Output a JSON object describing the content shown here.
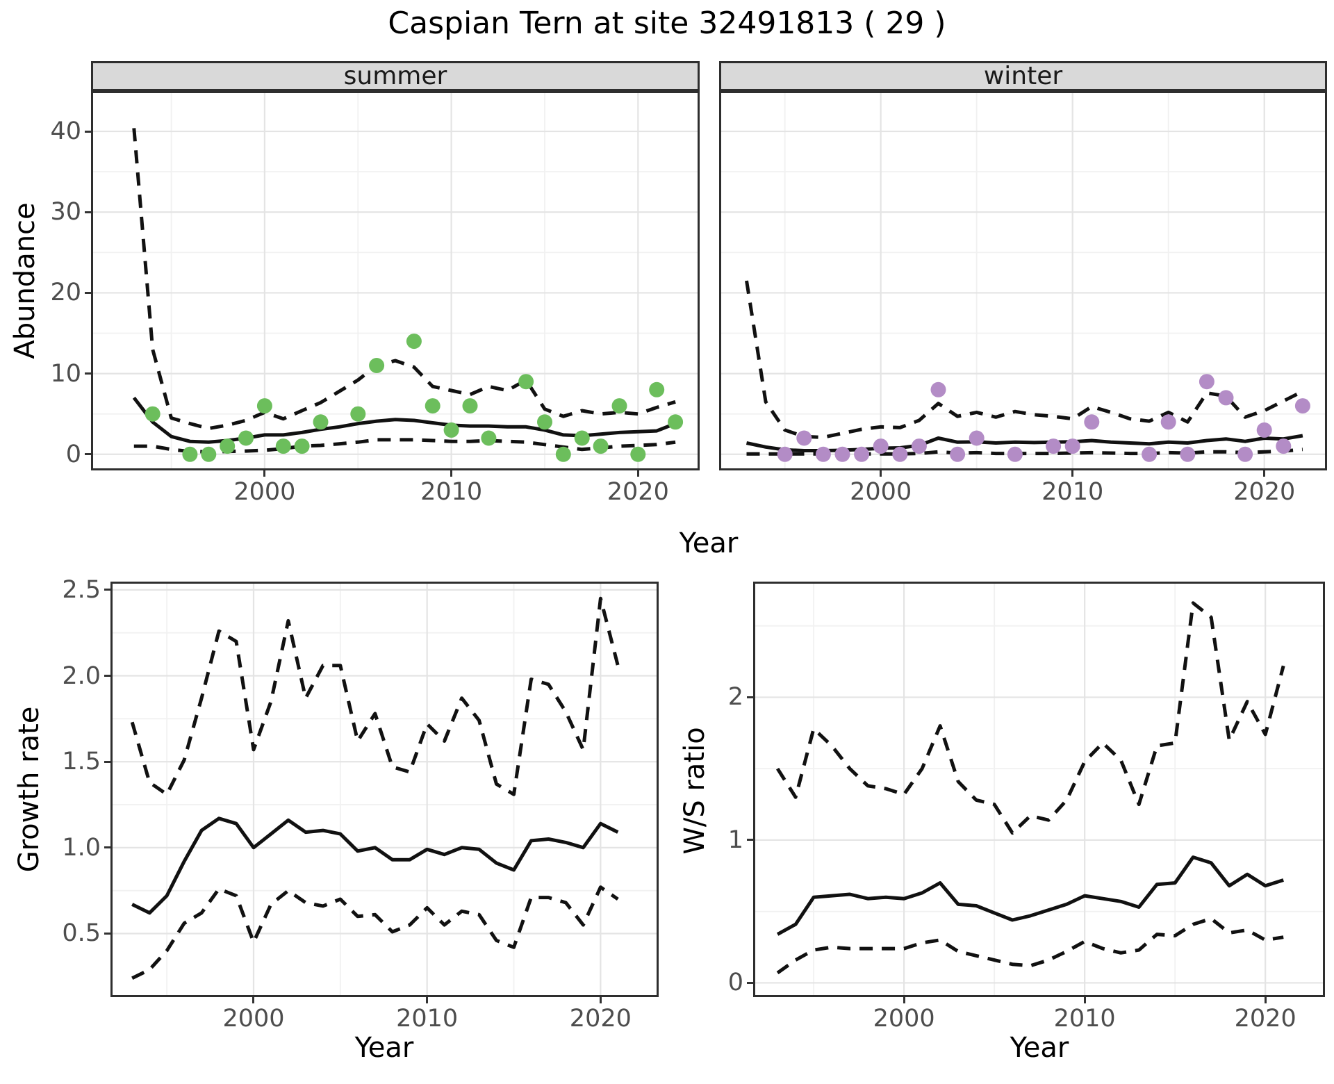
{
  "title": "Caspian Tern at site 32491813 ( 29 )",
  "top_row": {
    "ylabel": "Abundance",
    "xlabel": "Year"
  },
  "colors": {
    "summer_points": "#6CBE5C",
    "winter_points": "#B38CC6",
    "line": "#111111",
    "strip_bg": "#D9D9D9",
    "grid_major": "#E4E4E4",
    "grid_minor": "#F1F1F1",
    "panel_border": "#2E2E2E",
    "tick_text": "#4D4D4D"
  },
  "chart_data": [
    {
      "type": "line+scatter+band",
      "facet_label": "summer",
      "xlabel": "Year",
      "ylabel": "Abundance",
      "x_domain": [
        1990.7,
        2023.3
      ],
      "y_domain": [
        -2.0,
        45.0
      ],
      "x_ticks": [
        {
          "v": 2000,
          "label": "2000"
        },
        {
          "v": 2010,
          "label": "2010"
        },
        {
          "v": 2020,
          "label": "2020"
        }
      ],
      "y_ticks": [
        {
          "v": 0,
          "label": "0"
        },
        {
          "v": 10,
          "label": "10"
        },
        {
          "v": 20,
          "label": "20"
        },
        {
          "v": 30,
          "label": "30"
        },
        {
          "v": 40,
          "label": "40"
        }
      ],
      "x_minor": [
        1995,
        2005,
        2015
      ],
      "y_minor": [
        5,
        15,
        25,
        35
      ],
      "points": {
        "years": [
          1994,
          1996,
          1997,
          1998,
          1999,
          2000,
          2001,
          2002,
          2003,
          2005,
          2006,
          2008,
          2009,
          2010,
          2011,
          2012,
          2014,
          2015,
          2016,
          2017,
          2018,
          2019,
          2020,
          2021,
          2022
        ],
        "values": [
          5,
          0,
          0,
          1,
          2,
          6,
          1,
          1,
          4,
          5,
          11,
          14,
          6,
          3,
          6,
          2,
          9,
          4,
          0,
          2,
          1,
          6,
          0,
          8,
          4
        ]
      },
      "mean": {
        "years": [
          1993,
          1994,
          1995,
          1996,
          1997,
          1998,
          1999,
          2000,
          2001,
          2002,
          2003,
          2004,
          2005,
          2006,
          2007,
          2008,
          2009,
          2010,
          2011,
          2012,
          2013,
          2014,
          2015,
          2016,
          2017,
          2018,
          2019,
          2020,
          2021,
          2022
        ],
        "values": [
          7.0,
          4.0,
          2.2,
          1.6,
          1.5,
          1.7,
          2.0,
          2.4,
          2.4,
          2.7,
          3.1,
          3.4,
          3.8,
          4.1,
          4.3,
          4.2,
          3.9,
          3.6,
          3.5,
          3.5,
          3.4,
          3.4,
          3.0,
          2.4,
          2.3,
          2.5,
          2.7,
          2.8,
          2.9,
          3.8
        ]
      },
      "band_upper": {
        "years": [
          1993,
          1994,
          1995,
          1996,
          1997,
          1998,
          1999,
          2000,
          2001,
          2002,
          2003,
          2004,
          2005,
          2006,
          2007,
          2008,
          2009,
          2010,
          2011,
          2012,
          2013,
          2014,
          2015,
          2016,
          2017,
          2018,
          2019,
          2020,
          2021,
          2022
        ],
        "values": [
          40.4,
          13.0,
          4.5,
          3.8,
          3.2,
          3.6,
          4.2,
          5.2,
          4.4,
          5.4,
          6.4,
          7.8,
          9.2,
          11.0,
          11.6,
          10.8,
          8.4,
          7.9,
          7.4,
          8.4,
          7.9,
          9.2,
          5.6,
          4.7,
          5.4,
          5.0,
          5.2,
          5.0,
          5.8,
          6.5
        ]
      },
      "band_lower": {
        "years": [
          1993,
          1994,
          1995,
          1996,
          1997,
          1998,
          1999,
          2000,
          2001,
          2002,
          2003,
          2004,
          2005,
          2006,
          2007,
          2008,
          2009,
          2010,
          2011,
          2012,
          2013,
          2014,
          2015,
          2016,
          2017,
          2018,
          2019,
          2020,
          2021,
          2022
        ],
        "values": [
          1.0,
          1.0,
          0.6,
          0.35,
          0.3,
          0.35,
          0.4,
          0.5,
          0.7,
          1.0,
          1.1,
          1.3,
          1.5,
          1.8,
          1.8,
          1.8,
          1.7,
          1.6,
          1.6,
          1.7,
          1.6,
          1.5,
          1.2,
          0.9,
          0.6,
          0.8,
          1.0,
          1.1,
          1.2,
          1.5
        ]
      }
    },
    {
      "type": "line+scatter+band",
      "facet_label": "winter",
      "xlabel": "Year",
      "ylabel": "Abundance",
      "x_domain": [
        1991.57,
        2023.27
      ],
      "y_domain": [
        -2.0,
        45.0
      ],
      "x_ticks": [
        {
          "v": 2000,
          "label": "2000"
        },
        {
          "v": 2010,
          "label": "2010"
        },
        {
          "v": 2020,
          "label": "2020"
        }
      ],
      "y_ticks": [],
      "x_minor": [
        1995,
        2005,
        2015
      ],
      "y_minor": [
        5,
        15,
        25,
        35
      ],
      "points": {
        "years": [
          1995,
          1996,
          1997,
          1998,
          1999,
          2000,
          2001,
          2002,
          2003,
          2004,
          2005,
          2007,
          2009,
          2010,
          2011,
          2014,
          2015,
          2016,
          2017,
          2018,
          2019,
          2020,
          2021,
          2022
        ],
        "values": [
          0,
          2,
          0,
          0,
          0,
          1,
          0,
          1,
          8,
          0,
          2,
          0,
          1,
          1,
          4,
          0,
          4,
          0,
          9,
          7,
          0,
          3,
          1,
          6
        ]
      },
      "mean": {
        "years": [
          1993,
          1994,
          1995,
          1996,
          1997,
          1998,
          1999,
          2000,
          2001,
          2002,
          2003,
          2004,
          2005,
          2006,
          2007,
          2008,
          2009,
          2010,
          2011,
          2012,
          2013,
          2014,
          2015,
          2016,
          2017,
          2018,
          2019,
          2020,
          2021,
          2022
        ],
        "values": [
          1.4,
          0.9,
          0.55,
          0.45,
          0.45,
          0.5,
          0.6,
          0.75,
          0.8,
          1.1,
          2.0,
          1.5,
          1.55,
          1.4,
          1.5,
          1.45,
          1.5,
          1.55,
          1.7,
          1.5,
          1.4,
          1.3,
          1.5,
          1.4,
          1.7,
          1.9,
          1.6,
          2.0,
          1.9,
          2.3
        ]
      },
      "band_upper": {
        "years": [
          1993,
          1994,
          1995,
          1996,
          1997,
          1998,
          1999,
          2000,
          2001,
          2002,
          2003,
          2004,
          2005,
          2006,
          2007,
          2008,
          2009,
          2010,
          2011,
          2012,
          2013,
          2014,
          2015,
          2016,
          2017,
          2018,
          2019,
          2020,
          2021,
          2022
        ],
        "values": [
          21.5,
          6.5,
          3.0,
          2.2,
          2.1,
          2.6,
          3.1,
          3.4,
          3.3,
          4.2,
          6.3,
          4.7,
          5.2,
          4.6,
          5.3,
          4.9,
          4.7,
          4.4,
          5.9,
          5.2,
          4.4,
          4.1,
          5.2,
          4.0,
          7.6,
          7.2,
          4.6,
          5.4,
          6.6,
          7.8
        ]
      },
      "band_lower": {
        "years": [
          1993,
          1994,
          1995,
          1996,
          1997,
          1998,
          1999,
          2000,
          2001,
          2002,
          2003,
          2004,
          2005,
          2006,
          2007,
          2008,
          2009,
          2010,
          2011,
          2012,
          2013,
          2014,
          2015,
          2016,
          2017,
          2018,
          2019,
          2020,
          2021,
          2022
        ],
        "values": [
          0.05,
          0.05,
          0.05,
          0.05,
          0.05,
          0.05,
          0.05,
          0.05,
          0.05,
          0.1,
          0.3,
          0.15,
          0.2,
          0.1,
          0.1,
          0.1,
          0.1,
          0.15,
          0.2,
          0.15,
          0.1,
          0.1,
          0.2,
          0.15,
          0.3,
          0.3,
          0.2,
          0.3,
          0.4,
          0.6
        ]
      }
    },
    {
      "type": "line+band",
      "facet_label": "",
      "xlabel": "Year",
      "ylabel": "Growth rate",
      "x_domain": [
        1991.75,
        2023.35
      ],
      "y_domain": [
        0.13,
        2.548
      ],
      "x_ticks": [
        {
          "v": 2000,
          "label": "2000"
        },
        {
          "v": 2010,
          "label": "2010"
        },
        {
          "v": 2020,
          "label": "2020"
        }
      ],
      "y_ticks": [
        {
          "v": 0.5,
          "label": "0.5"
        },
        {
          "v": 1.0,
          "label": "1.0"
        },
        {
          "v": 1.5,
          "label": "1.5"
        },
        {
          "v": 2.0,
          "label": "2.0"
        },
        {
          "v": 2.5,
          "label": "2.5"
        }
      ],
      "x_minor": [
        1995,
        2005,
        2015
      ],
      "y_minor": [
        0.75,
        1.25,
        1.75,
        2.25
      ],
      "points": null,
      "mean": {
        "years": [
          1993,
          1994,
          1995,
          1996,
          1997,
          1998,
          1999,
          2000,
          2001,
          2002,
          2003,
          2004,
          2005,
          2006,
          2007,
          2008,
          2009,
          2010,
          2011,
          2012,
          2013,
          2014,
          2015,
          2016,
          2017,
          2018,
          2019,
          2020,
          2021
        ],
        "values": [
          0.67,
          0.62,
          0.72,
          0.92,
          1.1,
          1.17,
          1.14,
          1.0,
          1.08,
          1.16,
          1.09,
          1.1,
          1.08,
          0.98,
          1.0,
          0.93,
          0.93,
          0.99,
          0.96,
          1.0,
          0.99,
          0.91,
          0.87,
          1.04,
          1.05,
          1.03,
          1.0,
          1.14,
          1.09
        ]
      },
      "band_upper": {
        "years": [
          1993,
          1994,
          1995,
          1996,
          1997,
          1998,
          1999,
          2000,
          2001,
          2002,
          2003,
          2004,
          2005,
          2006,
          2007,
          2008,
          2009,
          2010,
          2011,
          2012,
          2013,
          2014,
          2015,
          2016,
          2017,
          2018,
          2019,
          2020,
          2021
        ],
        "values": [
          1.73,
          1.38,
          1.31,
          1.51,
          1.87,
          2.26,
          2.2,
          1.57,
          1.85,
          2.32,
          1.87,
          2.06,
          2.06,
          1.62,
          1.78,
          1.47,
          1.44,
          1.72,
          1.62,
          1.87,
          1.74,
          1.37,
          1.31,
          1.98,
          1.95,
          1.79,
          1.57,
          2.45,
          2.06
        ]
      },
      "band_lower": {
        "years": [
          1993,
          1994,
          1995,
          1996,
          1997,
          1998,
          1999,
          2000,
          2001,
          2002,
          2003,
          2004,
          2005,
          2006,
          2007,
          2008,
          2009,
          2010,
          2011,
          2012,
          2013,
          2014,
          2015,
          2016,
          2017,
          2018,
          2019,
          2020,
          2021
        ],
        "values": [
          0.24,
          0.29,
          0.4,
          0.56,
          0.62,
          0.76,
          0.72,
          0.45,
          0.67,
          0.75,
          0.68,
          0.66,
          0.7,
          0.6,
          0.61,
          0.51,
          0.55,
          0.65,
          0.55,
          0.63,
          0.61,
          0.46,
          0.42,
          0.71,
          0.71,
          0.68,
          0.55,
          0.77,
          0.7
        ]
      }
    },
    {
      "type": "line+band",
      "facet_label": "",
      "xlabel": "Year",
      "ylabel": "W/S ratio",
      "x_domain": [
        1991.65,
        2023.3
      ],
      "y_domain": [
        -0.1,
        2.81
      ],
      "x_ticks": [
        {
          "v": 2000,
          "label": "2000"
        },
        {
          "v": 2010,
          "label": "2010"
        },
        {
          "v": 2020,
          "label": "2020"
        }
      ],
      "y_ticks": [
        {
          "v": 0,
          "label": "0"
        },
        {
          "v": 1,
          "label": "1"
        },
        {
          "v": 2,
          "label": "2"
        }
      ],
      "x_minor": [
        1995,
        2005,
        2015
      ],
      "y_minor": [
        0.5,
        1.5,
        2.5
      ],
      "points": null,
      "mean": {
        "years": [
          1993,
          1994,
          1995,
          1996,
          1997,
          1998,
          1999,
          2000,
          2001,
          2002,
          2003,
          2004,
          2005,
          2006,
          2007,
          2008,
          2009,
          2010,
          2011,
          2012,
          2013,
          2014,
          2015,
          2016,
          2017,
          2018,
          2019,
          2020,
          2021
        ],
        "values": [
          0.34,
          0.41,
          0.6,
          0.61,
          0.62,
          0.59,
          0.6,
          0.59,
          0.63,
          0.7,
          0.55,
          0.54,
          0.49,
          0.44,
          0.47,
          0.51,
          0.55,
          0.61,
          0.59,
          0.57,
          0.53,
          0.69,
          0.7,
          0.88,
          0.84,
          0.68,
          0.76,
          0.68,
          0.72
        ]
      },
      "band_upper": {
        "years": [
          1993,
          1994,
          1995,
          1996,
          1997,
          1998,
          1999,
          2000,
          2001,
          2002,
          2003,
          2004,
          2005,
          2006,
          2007,
          2008,
          2009,
          2010,
          2011,
          2012,
          2013,
          2014,
          2015,
          2016,
          2017,
          2018,
          2019,
          2020,
          2021
        ],
        "values": [
          1.5,
          1.3,
          1.78,
          1.66,
          1.5,
          1.38,
          1.36,
          1.32,
          1.5,
          1.8,
          1.41,
          1.28,
          1.25,
          1.05,
          1.17,
          1.14,
          1.28,
          1.55,
          1.68,
          1.56,
          1.25,
          1.66,
          1.68,
          2.66,
          2.56,
          1.7,
          1.97,
          1.74,
          2.22
        ]
      },
      "band_lower": {
        "years": [
          1993,
          1994,
          1995,
          1996,
          1997,
          1998,
          1999,
          2000,
          2001,
          2002,
          2003,
          2004,
          2005,
          2006,
          2007,
          2008,
          2009,
          2010,
          2011,
          2012,
          2013,
          2014,
          2015,
          2016,
          2017,
          2018,
          2019,
          2020,
          2021
        ],
        "values": [
          0.07,
          0.16,
          0.23,
          0.25,
          0.24,
          0.24,
          0.24,
          0.24,
          0.28,
          0.3,
          0.22,
          0.19,
          0.16,
          0.13,
          0.12,
          0.16,
          0.22,
          0.29,
          0.24,
          0.21,
          0.23,
          0.34,
          0.33,
          0.41,
          0.45,
          0.35,
          0.37,
          0.3,
          0.32
        ]
      }
    }
  ]
}
